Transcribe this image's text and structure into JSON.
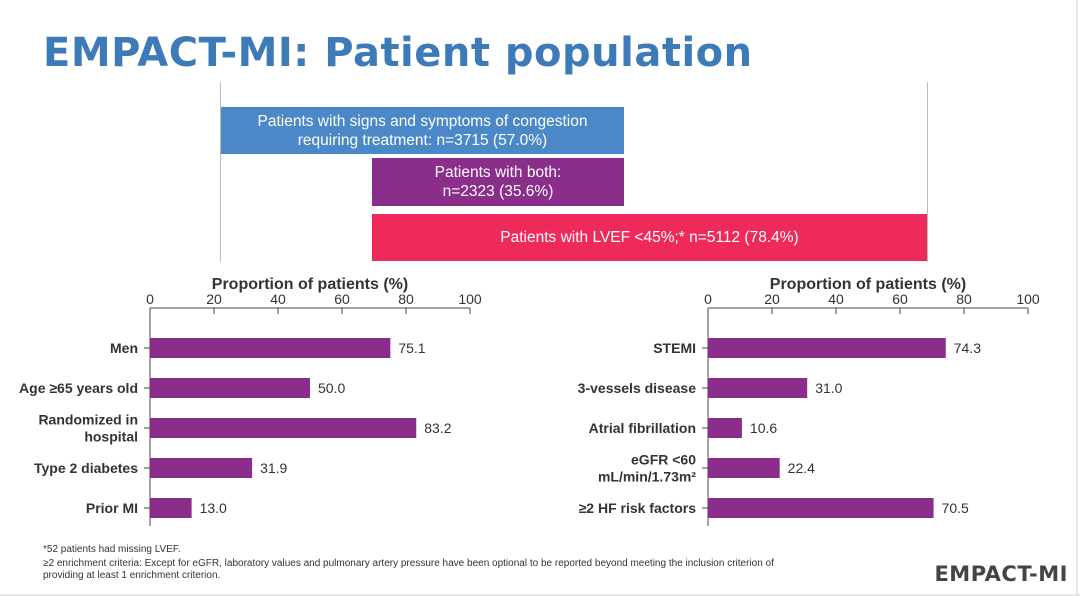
{
  "slide": {
    "title": "EMPACT-MI: Patient population",
    "brand": "EMPACT-MI"
  },
  "venn": {
    "congestion": {
      "line1": "Patients with signs and symptoms of congestion",
      "line2": "requiring treatment: n=3715 (57.0%)",
      "color": "#4a88c7"
    },
    "both": {
      "line1": "Patients with both:",
      "line2": "n=2323 (35.6%)",
      "color": "#8b2d8a"
    },
    "lvef": {
      "line1": "Patients with LVEF <45%;* n=5112 (78.4%)",
      "color": "#ee2a5a"
    }
  },
  "footnotes": [
    "*52 patients had missing LVEF.",
    "≥2 enrichment criteria: Except for eGFR, laboratory values and pulmonary artery pressure have been optional to be reported beyond meeting the inclusion criterion of",
    "providing at least 1 enrichment criterion."
  ],
  "chart_data": [
    {
      "type": "bar",
      "orientation": "horizontal",
      "title": "Proportion of patients (%)",
      "categories": [
        "Men",
        "Age ≥65 years old",
        "Randomized in hospital",
        "Type 2 diabetes",
        "Prior MI"
      ],
      "category_lines": [
        [
          "Men"
        ],
        [
          "Age ≥65 years old"
        ],
        [
          "Randomized in",
          "hospital"
        ],
        [
          "Type 2 diabetes"
        ],
        [
          "Prior MI"
        ]
      ],
      "values": [
        75.1,
        50.0,
        83.2,
        31.9,
        13.0
      ],
      "value_labels": [
        "75.1",
        "50.0",
        "83.2",
        "31.9",
        "13.0"
      ],
      "xlim": [
        0,
        100
      ],
      "ticks": [
        0,
        20,
        40,
        60,
        80,
        100
      ],
      "grid": false,
      "bar_color": "#8b2d8a"
    },
    {
      "type": "bar",
      "orientation": "horizontal",
      "title": "Proportion of patients (%)",
      "categories": [
        "STEMI",
        "3-vessels disease",
        "Atrial fibrillation",
        "eGFR <60 mL/min/1.73m2",
        "≥2 HF risk factors"
      ],
      "category_lines": [
        [
          "STEMI"
        ],
        [
          "3-vessels disease"
        ],
        [
          "Atrial fibrillation"
        ],
        [
          "eGFR <60",
          "mL/min/1.73m²"
        ],
        [
          "≥2 HF risk factors"
        ]
      ],
      "values": [
        74.3,
        31.0,
        10.6,
        22.4,
        70.5
      ],
      "value_labels": [
        "74.3",
        "31.0",
        "10.6",
        "22.4",
        "70.5"
      ],
      "xlim": [
        0,
        100
      ],
      "ticks": [
        0,
        20,
        40,
        60,
        80,
        100
      ],
      "grid": false,
      "bar_color": "#8b2d8a"
    }
  ]
}
